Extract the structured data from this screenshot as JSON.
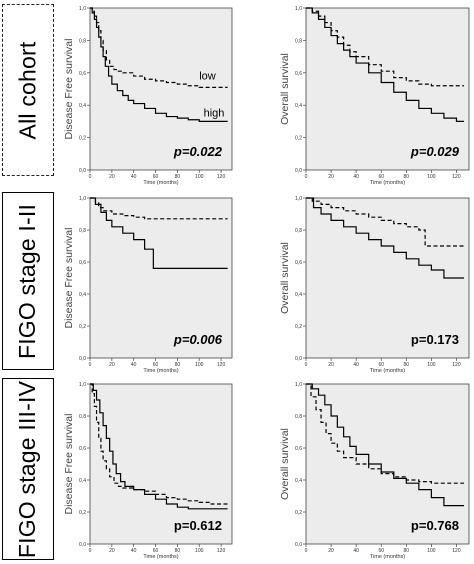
{
  "figure": {
    "rows": [
      {
        "label": "All cohort"
      },
      {
        "label": "FIGO stage I-II"
      },
      {
        "label": "FIGO stage III-IV"
      }
    ]
  },
  "chart_data": [
    {
      "type": "line",
      "row": 0,
      "col": 0,
      "ylabel": "Disease Free survival",
      "xlabel": "Time (months)",
      "pvalue": "p=0.022",
      "italic": true,
      "xlim": [
        0,
        130
      ],
      "ylim": [
        0,
        1.0
      ],
      "xticks": [
        0,
        20,
        40,
        60,
        80,
        100,
        120
      ],
      "yticks": [
        0.0,
        0.2,
        0.4,
        0.6,
        0.8,
        1.0
      ],
      "ytick_labels": [
        "0,0",
        "0,2",
        "0,4",
        "0,6",
        "0,8",
        "1,0"
      ],
      "annotations": [
        {
          "text": "low",
          "x": 100,
          "y": 0.56
        },
        {
          "text": "high",
          "x": 104,
          "y": 0.33
        }
      ],
      "series": [
        {
          "name": "low",
          "style": "dashed",
          "x": [
            0,
            2,
            4,
            6,
            8,
            10,
            12,
            15,
            18,
            22,
            26,
            30,
            40,
            50,
            60,
            70,
            80,
            90,
            100,
            110,
            120,
            126
          ],
          "y": [
            1.0,
            0.98,
            0.95,
            0.91,
            0.86,
            0.8,
            0.74,
            0.68,
            0.64,
            0.62,
            0.61,
            0.6,
            0.58,
            0.56,
            0.55,
            0.54,
            0.53,
            0.52,
            0.51,
            0.51,
            0.51,
            0.51
          ]
        },
        {
          "name": "high",
          "style": "solid",
          "x": [
            0,
            2,
            4,
            6,
            8,
            10,
            12,
            14,
            17,
            20,
            25,
            30,
            35,
            40,
            50,
            60,
            70,
            80,
            90,
            100,
            110,
            120,
            126
          ],
          "y": [
            1.0,
            0.97,
            0.93,
            0.88,
            0.82,
            0.76,
            0.7,
            0.64,
            0.58,
            0.53,
            0.49,
            0.46,
            0.43,
            0.41,
            0.38,
            0.35,
            0.33,
            0.32,
            0.31,
            0.3,
            0.3,
            0.3,
            0.3
          ]
        }
      ]
    },
    {
      "type": "line",
      "row": 0,
      "col": 1,
      "ylabel": "Overall survival",
      "xlabel": "Time (months)",
      "pvalue": "p=0.029",
      "italic": true,
      "xlim": [
        0,
        130
      ],
      "ylim": [
        0,
        1.0
      ],
      "xticks": [
        0,
        20,
        40,
        60,
        80,
        100,
        120
      ],
      "yticks": [
        0.0,
        0.2,
        0.4,
        0.6,
        0.8,
        1.0
      ],
      "ytick_labels": [
        "0,0",
        "0,2",
        "0,4",
        "0,6",
        "0,8",
        "1,0"
      ],
      "series": [
        {
          "name": "low",
          "style": "dashed",
          "x": [
            0,
            5,
            10,
            15,
            20,
            25,
            30,
            35,
            40,
            50,
            60,
            70,
            80,
            90,
            100,
            110,
            120,
            126
          ],
          "y": [
            1.0,
            0.98,
            0.95,
            0.91,
            0.86,
            0.82,
            0.77,
            0.73,
            0.7,
            0.65,
            0.61,
            0.57,
            0.55,
            0.53,
            0.52,
            0.52,
            0.52,
            0.52
          ]
        },
        {
          "name": "high",
          "style": "solid",
          "x": [
            0,
            5,
            10,
            15,
            20,
            25,
            30,
            35,
            40,
            50,
            60,
            70,
            80,
            90,
            100,
            110,
            120,
            126
          ],
          "y": [
            1.0,
            0.97,
            0.93,
            0.88,
            0.83,
            0.78,
            0.74,
            0.7,
            0.66,
            0.6,
            0.54,
            0.48,
            0.43,
            0.38,
            0.35,
            0.32,
            0.3,
            0.3
          ]
        }
      ]
    },
    {
      "type": "line",
      "row": 1,
      "col": 0,
      "ylabel": "Disease Free survival",
      "xlabel": "Time (months)",
      "pvalue": "p=0.006",
      "italic": true,
      "xlim": [
        0,
        130
      ],
      "ylim": [
        0,
        1.0
      ],
      "xticks": [
        0,
        20,
        40,
        60,
        80,
        100,
        120
      ],
      "yticks": [
        0.0,
        0.2,
        0.4,
        0.6,
        0.8,
        1.0
      ],
      "ytick_labels": [
        "0,0",
        "0,2",
        "0,4",
        "0,6",
        "0,8",
        "1,0"
      ],
      "series": [
        {
          "name": "low",
          "style": "dashed",
          "x": [
            0,
            5,
            8,
            12,
            20,
            30,
            40,
            50,
            60,
            80,
            100,
            126
          ],
          "y": [
            1.0,
            0.97,
            0.94,
            0.92,
            0.9,
            0.89,
            0.88,
            0.87,
            0.87,
            0.87,
            0.87,
            0.87
          ]
        },
        {
          "name": "high",
          "style": "solid",
          "x": [
            0,
            5,
            10,
            15,
            20,
            30,
            40,
            50,
            58,
            80,
            100,
            126
          ],
          "y": [
            1.0,
            0.96,
            0.91,
            0.86,
            0.82,
            0.78,
            0.74,
            0.68,
            0.56,
            0.56,
            0.56,
            0.56
          ]
        }
      ]
    },
    {
      "type": "line",
      "row": 1,
      "col": 1,
      "ylabel": "Overall survival",
      "xlabel": "Time (months)",
      "pvalue": "p=0.173",
      "italic": false,
      "xlim": [
        0,
        130
      ],
      "ylim": [
        0,
        1.0
      ],
      "xticks": [
        0,
        20,
        40,
        60,
        80,
        100,
        120
      ],
      "yticks": [
        0.0,
        0.2,
        0.4,
        0.6,
        0.8,
        1.0
      ],
      "ytick_labels": [
        "0,0",
        "0,2",
        "0,4",
        "0,6",
        "0,8",
        "1,0"
      ],
      "series": [
        {
          "name": "low",
          "style": "dashed",
          "x": [
            0,
            5,
            12,
            20,
            30,
            40,
            50,
            60,
            70,
            80,
            90,
            95,
            110,
            126
          ],
          "y": [
            1.0,
            0.98,
            0.96,
            0.94,
            0.92,
            0.9,
            0.88,
            0.86,
            0.84,
            0.82,
            0.8,
            0.7,
            0.7,
            0.7
          ]
        },
        {
          "name": "high",
          "style": "solid",
          "x": [
            0,
            6,
            12,
            20,
            30,
            40,
            50,
            60,
            70,
            80,
            90,
            100,
            110,
            126
          ],
          "y": [
            1.0,
            0.94,
            0.9,
            0.86,
            0.82,
            0.78,
            0.74,
            0.7,
            0.66,
            0.62,
            0.58,
            0.55,
            0.5,
            0.5
          ]
        }
      ]
    },
    {
      "type": "line",
      "row": 2,
      "col": 0,
      "ylabel": "Disease Free survival",
      "xlabel": "Time (months)",
      "pvalue": "p=0.612",
      "italic": false,
      "xlim": [
        0,
        130
      ],
      "ylim": [
        0,
        1.0
      ],
      "xticks": [
        0,
        20,
        40,
        60,
        80,
        100,
        120
      ],
      "yticks": [
        0.0,
        0.2,
        0.4,
        0.6,
        0.8,
        1.0
      ],
      "ytick_labels": [
        "0,0",
        "0,2",
        "0,4",
        "0,6",
        "0,8",
        "1,0"
      ],
      "series": [
        {
          "name": "low",
          "style": "dashed",
          "x": [
            0,
            2,
            4,
            6,
            8,
            10,
            12,
            15,
            18,
            22,
            26,
            30,
            40,
            50,
            60,
            70,
            80,
            90,
            100,
            110,
            126
          ],
          "y": [
            1.0,
            0.94,
            0.86,
            0.76,
            0.66,
            0.58,
            0.52,
            0.47,
            0.42,
            0.38,
            0.36,
            0.35,
            0.34,
            0.33,
            0.31,
            0.29,
            0.28,
            0.27,
            0.26,
            0.25,
            0.25
          ]
        },
        {
          "name": "high",
          "style": "solid",
          "x": [
            0,
            3,
            6,
            9,
            12,
            15,
            18,
            21,
            24,
            28,
            32,
            40,
            50,
            60,
            70,
            80,
            90,
            100,
            110,
            126
          ],
          "y": [
            1.0,
            0.96,
            0.9,
            0.82,
            0.74,
            0.66,
            0.58,
            0.5,
            0.44,
            0.39,
            0.36,
            0.34,
            0.31,
            0.28,
            0.25,
            0.23,
            0.22,
            0.22,
            0.22,
            0.22
          ]
        }
      ]
    },
    {
      "type": "line",
      "row": 2,
      "col": 1,
      "ylabel": "Overall survival",
      "xlabel": "Time (months)",
      "pvalue": "p=0.768",
      "italic": false,
      "xlim": [
        0,
        130
      ],
      "ylim": [
        0,
        1.0
      ],
      "xticks": [
        0,
        20,
        40,
        60,
        80,
        100,
        120
      ],
      "yticks": [
        0.0,
        0.2,
        0.4,
        0.6,
        0.8,
        1.0
      ],
      "ytick_labels": [
        "0,0",
        "0,2",
        "0,4",
        "0,6",
        "0,8",
        "1,0"
      ],
      "series": [
        {
          "name": "low",
          "style": "dashed",
          "x": [
            0,
            4,
            8,
            12,
            16,
            20,
            25,
            30,
            40,
            50,
            60,
            70,
            80,
            90,
            100,
            110,
            126
          ],
          "y": [
            1.0,
            0.92,
            0.84,
            0.76,
            0.69,
            0.63,
            0.58,
            0.54,
            0.5,
            0.47,
            0.44,
            0.42,
            0.4,
            0.39,
            0.38,
            0.38,
            0.38
          ]
        },
        {
          "name": "high",
          "style": "solid",
          "x": [
            0,
            5,
            10,
            15,
            20,
            25,
            30,
            35,
            40,
            50,
            60,
            70,
            80,
            90,
            100,
            110,
            126
          ],
          "y": [
            1.0,
            0.97,
            0.93,
            0.87,
            0.8,
            0.73,
            0.67,
            0.61,
            0.56,
            0.5,
            0.45,
            0.41,
            0.38,
            0.34,
            0.29,
            0.24,
            0.24
          ]
        }
      ]
    }
  ]
}
